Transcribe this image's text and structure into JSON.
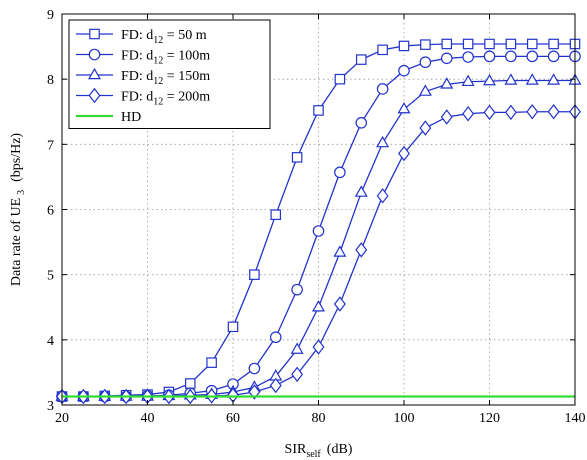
{
  "chart_data": {
    "type": "line",
    "xlabel": "SIR",
    "xlabel_sub": "self",
    "xlabel_unit": "(dB)",
    "ylabel": "Data rate of UE",
    "ylabel_sub": "3",
    "ylabel_unit": "(bps/Hz)",
    "xlim": [
      20,
      140
    ],
    "ylim": [
      3,
      9
    ],
    "x_ticks": [
      20,
      40,
      60,
      80,
      100,
      120,
      140
    ],
    "y_ticks": [
      3,
      4,
      5,
      6,
      7,
      8,
      9
    ],
    "grid": true,
    "legend_position": "top-left",
    "x": [
      20,
      25,
      30,
      35,
      40,
      45,
      50,
      55,
      60,
      65,
      70,
      75,
      80,
      85,
      90,
      95,
      100,
      105,
      110,
      115,
      120,
      125,
      130,
      135,
      140
    ],
    "series": [
      {
        "name_prefix": "FD: d",
        "name_sub": "12",
        "name_suffix": " = 50 m",
        "marker": "square",
        "color": "#2233cc",
        "values": [
          3.13,
          3.13,
          3.14,
          3.15,
          3.16,
          3.2,
          3.33,
          3.65,
          4.2,
          5.0,
          5.92,
          6.8,
          7.52,
          8.0,
          8.3,
          8.45,
          8.51,
          8.53,
          8.54,
          8.54,
          8.54,
          8.54,
          8.54,
          8.54,
          8.54
        ]
      },
      {
        "name_prefix": "FD: d",
        "name_sub": "12",
        "name_suffix": " = 100m",
        "marker": "circle",
        "color": "#2233cc",
        "values": [
          3.13,
          3.13,
          3.13,
          3.13,
          3.14,
          3.15,
          3.18,
          3.22,
          3.32,
          3.56,
          4.04,
          4.77,
          5.67,
          6.57,
          7.33,
          7.85,
          8.13,
          8.26,
          8.32,
          8.34,
          8.35,
          8.35,
          8.35,
          8.35,
          8.35
        ]
      },
      {
        "name_prefix": "FD: d",
        "name_sub": "12",
        "name_suffix": " = 150m",
        "marker": "triangle",
        "color": "#2233cc",
        "values": [
          3.13,
          3.13,
          3.13,
          3.13,
          3.13,
          3.14,
          3.15,
          3.16,
          3.2,
          3.27,
          3.44,
          3.85,
          4.5,
          5.34,
          6.26,
          7.02,
          7.54,
          7.81,
          7.92,
          7.96,
          7.97,
          7.98,
          7.98,
          7.98,
          7.98
        ]
      },
      {
        "name_prefix": "FD: d",
        "name_sub": "12",
        "name_suffix": " = 200m",
        "marker": "diamond",
        "color": "#2233cc",
        "values": [
          3.13,
          3.13,
          3.13,
          3.13,
          3.13,
          3.13,
          3.13,
          3.14,
          3.15,
          3.2,
          3.3,
          3.47,
          3.89,
          4.55,
          5.38,
          6.21,
          6.86,
          7.25,
          7.42,
          7.47,
          7.49,
          7.49,
          7.5,
          7.5,
          7.5
        ]
      },
      {
        "name": "HD",
        "marker": "none",
        "color": "#33dd33",
        "constant": 3.13
      }
    ]
  }
}
